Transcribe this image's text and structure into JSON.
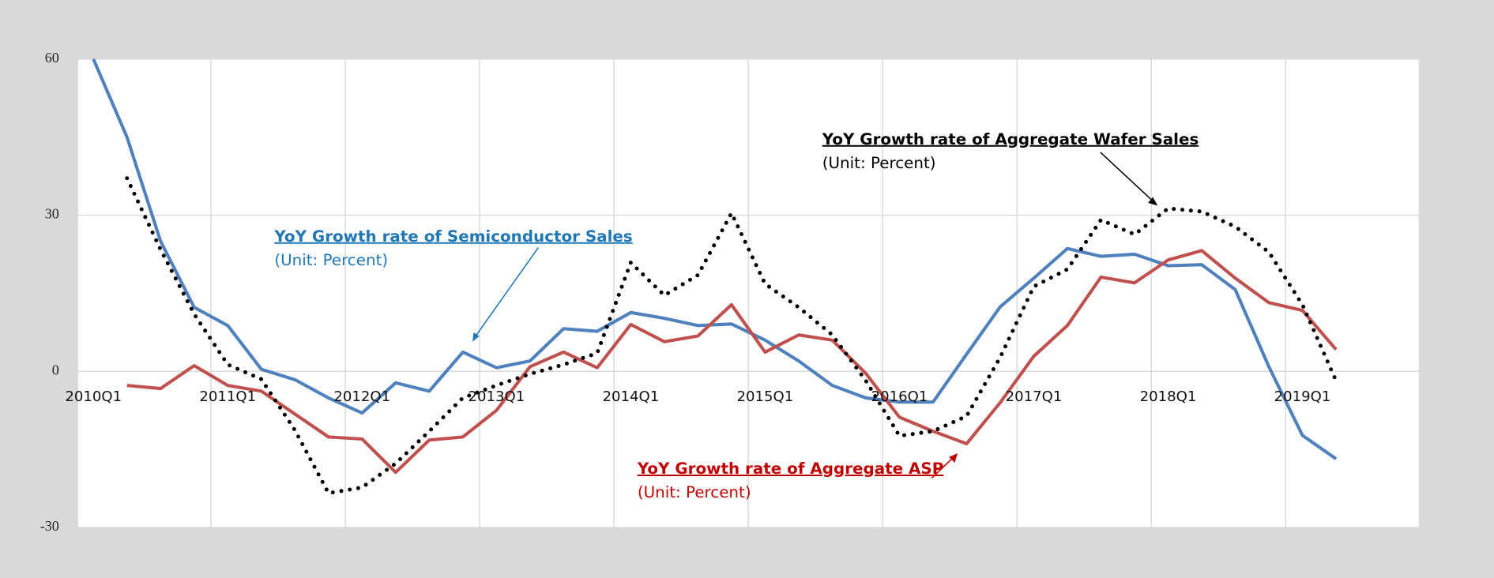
{
  "chart_data": {
    "type": "line",
    "categories": [
      "2010Q1",
      null,
      null,
      null,
      "2011Q1",
      null,
      null,
      null,
      "2012Q1",
      null,
      null,
      null,
      "2013Q1",
      null,
      null,
      null,
      "2014Q1",
      null,
      null,
      null,
      "2015Q1",
      null,
      null,
      null,
      "2016Q1",
      null,
      null,
      null,
      "2017Q1",
      null,
      null,
      null,
      "2018Q1",
      null,
      null,
      null,
      "2019Q1",
      null
    ],
    "ylim": [
      -30,
      60
    ],
    "yticks": [
      -30,
      0,
      30,
      60
    ],
    "negative_tick_color": "#e02020",
    "grid": true,
    "series": [
      {
        "name": "YoY Growth rate of Semiconductor Sales",
        "color": "#4f81bd",
        "style": "solid",
        "values": [
          60,
          45,
          25,
          12.3,
          8.8,
          0.4,
          -1.6,
          -5.1,
          -8,
          -2.2,
          -3.8,
          3.7,
          0.7,
          2,
          8.2,
          7.7,
          11.3,
          10.2,
          8.8,
          9.1,
          6,
          2,
          -2.7,
          -5.1,
          -5.9,
          -5.9,
          3.3,
          12.4,
          17.9,
          23.6,
          22.1,
          22.5,
          20.3,
          20.5,
          15.7,
          0.9,
          -12.3,
          -16.8
        ]
      },
      {
        "name": "YoY Growth rate of  Aggregate ASP",
        "color": "#c0504d",
        "style": "solid",
        "values": [
          null,
          -2.7,
          -3.3,
          1.1,
          -2.7,
          -3.8,
          -8.2,
          -12.6,
          -13,
          -19.4,
          -13.2,
          -12.6,
          -7.5,
          0.9,
          3.7,
          0.7,
          9,
          5.7,
          6.8,
          12.8,
          3.7,
          7,
          6,
          -0.4,
          -8.8,
          -11.5,
          -13.9,
          -6,
          2.9,
          8.8,
          18.1,
          17,
          21.4,
          23.2,
          17.9,
          13.2,
          11.7,
          4.2
        ]
      },
      {
        "name": "YoY Growth rate of Aggregate Wafer Sales",
        "color": "#000000",
        "style": "dotted",
        "values": [
          null,
          37.1,
          23.4,
          11,
          1.3,
          -1.5,
          -11.3,
          -23.4,
          -22.3,
          -17.7,
          -11.5,
          -5.1,
          -2.7,
          -0.5,
          1.3,
          3.5,
          20.9,
          14.6,
          18.5,
          30.4,
          16.8,
          12.3,
          7,
          -1.8,
          -12.4,
          -11.5,
          -8.6,
          2.7,
          16.3,
          19.6,
          29.1,
          26.3,
          31.3,
          30.7,
          27.8,
          22.9,
          12.8,
          -1.8
        ]
      }
    ],
    "annotations": [
      {
        "text": "YoY Growth rate of Semiconductor Sales",
        "subtext": "(Unit: Percent)"
      },
      {
        "text": "YoY Growth rate of Aggregate Wafer Sales",
        "subtext": "(Unit: Percent)"
      },
      {
        "text": "YoY Growth rate of  Aggregate ASP",
        "subtext": "(Unit: Percent)"
      }
    ]
  }
}
